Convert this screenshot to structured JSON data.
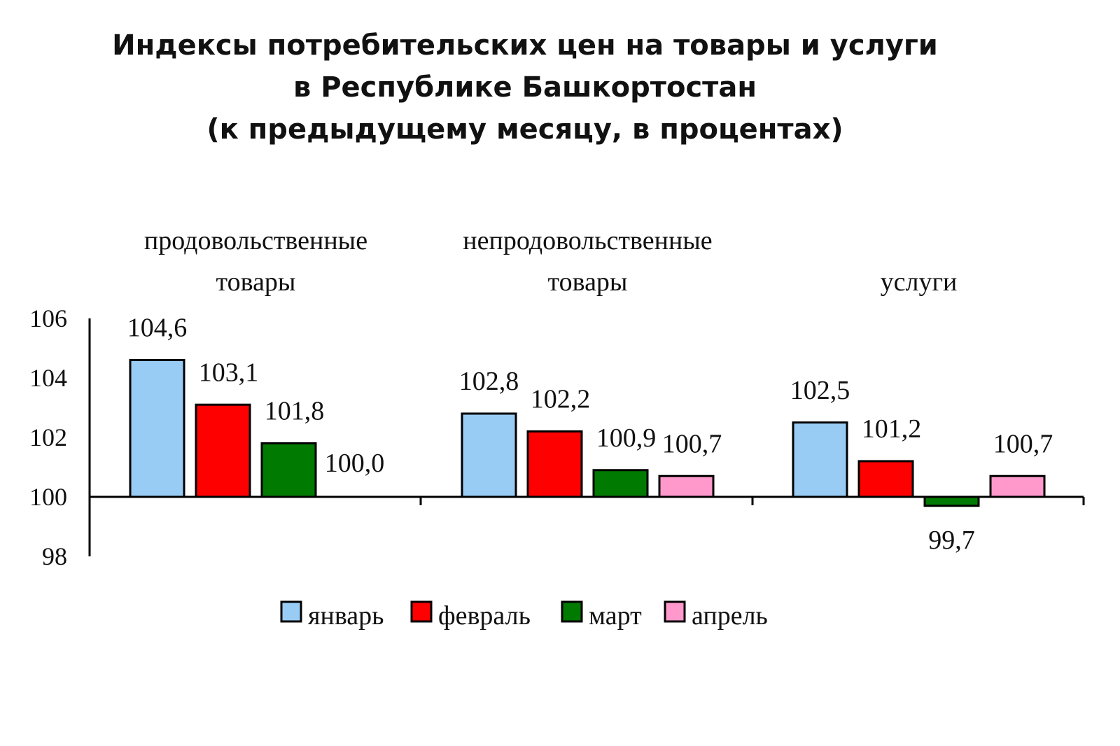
{
  "chart_data": {
    "type": "bar",
    "title_lines": [
      "Индексы потребительских цен на товары и услуги",
      "в Республике Башкортостан",
      "(к предыдущему месяцу, в процентах)"
    ],
    "categories": [
      {
        "name": "продовольственные товары",
        "lines": [
          "продовольственные",
          "товары"
        ]
      },
      {
        "name": "непродовольственные товары",
        "lines": [
          "непродовольственные",
          "товары"
        ]
      },
      {
        "name": "услуги",
        "lines": [
          "услуги"
        ]
      }
    ],
    "series": [
      {
        "name": "январь",
        "color": "#99CCF5",
        "values": [
          104.6,
          102.8,
          102.5
        ],
        "labels": [
          "104,6",
          "102,8",
          "102,5"
        ]
      },
      {
        "name": "февраль",
        "color": "#FF0000",
        "values": [
          103.1,
          102.2,
          101.2
        ],
        "labels": [
          "103,1",
          "102,2",
          "101,2"
        ]
      },
      {
        "name": "март",
        "color": "#007A00",
        "values": [
          101.8,
          100.9,
          99.7
        ],
        "labels": [
          "101,8",
          "100,9",
          "99,7"
        ]
      },
      {
        "name": "апрель",
        "color": "#FF99CC",
        "values": [
          100.0,
          100.7,
          100.7
        ],
        "labels": [
          "100,0",
          "100,7",
          "100,7"
        ]
      }
    ],
    "baseline": 100,
    "ylim": [
      98,
      106
    ],
    "yticks": [
      98,
      100,
      102,
      104,
      106
    ],
    "ytick_labels": [
      "98",
      "100",
      "102",
      "104",
      "106"
    ],
    "legend_position": "bottom",
    "grid": false
  }
}
